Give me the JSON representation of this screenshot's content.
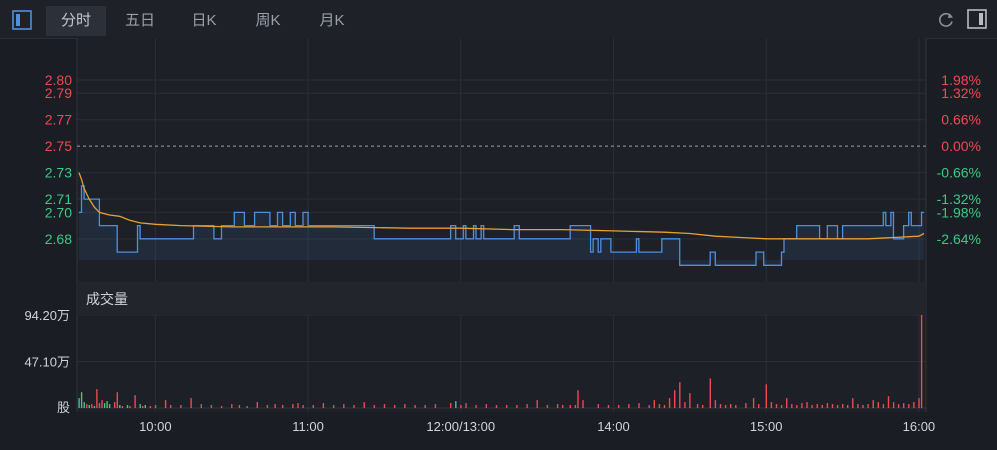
{
  "tabs": [
    {
      "label": "分时",
      "active": true
    },
    {
      "label": "五日",
      "active": false
    },
    {
      "label": "日K",
      "active": false
    },
    {
      "label": "周K",
      "active": false
    },
    {
      "label": "月K",
      "active": false
    }
  ],
  "icons": {
    "left": "panel-toggle-icon",
    "refresh": "refresh-icon",
    "right": "sidebar-icon"
  },
  "colors": {
    "background": "#1a1d23",
    "up": "#f0494f",
    "down": "#3dc985",
    "price_line": "#4d90e0",
    "avg_line": "#e8a030",
    "grid": "#2a2e36"
  },
  "chart_data": [
    {
      "type": "line",
      "name": "price",
      "prev_close": 2.75,
      "ylim": [
        2.664,
        2.8
      ],
      "y_ticks": [
        {
          "value": 2.8,
          "label": "2.80",
          "pct": "1.98%"
        },
        {
          "value": 2.79,
          "label": "2.79",
          "pct": "1.32%"
        },
        {
          "value": 2.77,
          "label": "2.77",
          "pct": "0.66%"
        },
        {
          "value": 2.75,
          "label": "2.75",
          "pct": "0.00%"
        },
        {
          "value": 2.73,
          "label": "2.73",
          "pct": "-0.66%"
        },
        {
          "value": 2.71,
          "label": "2.71",
          "pct": "-1.32%"
        },
        {
          "value": 2.7,
          "label": "2.70",
          "pct": "-1.98%"
        },
        {
          "value": 2.68,
          "label": "2.68",
          "pct": "-2.64%"
        }
      ],
      "time_ticks": [
        {
          "t": 30,
          "label": "10:00"
        },
        {
          "t": 90,
          "label": "11:00"
        },
        {
          "t": 150,
          "label": "12:00/13:00"
        },
        {
          "t": 210,
          "label": "14:00"
        },
        {
          "t": 270,
          "label": "15:00"
        },
        {
          "t": 330,
          "label": "16:00"
        }
      ],
      "price_points": [
        [
          0,
          2.7
        ],
        [
          1,
          2.72
        ],
        [
          2,
          2.71
        ],
        [
          6,
          2.71
        ],
        [
          8,
          2.69
        ],
        [
          14,
          2.69
        ],
        [
          15,
          2.67
        ],
        [
          22,
          2.67
        ],
        [
          23,
          2.69
        ],
        [
          24,
          2.68
        ],
        [
          44,
          2.68
        ],
        [
          45,
          2.69
        ],
        [
          52,
          2.69
        ],
        [
          53,
          2.68
        ],
        [
          55,
          2.68
        ],
        [
          56,
          2.69
        ],
        [
          60,
          2.69
        ],
        [
          61,
          2.7
        ],
        [
          64,
          2.7
        ],
        [
          65,
          2.69
        ],
        [
          68,
          2.69
        ],
        [
          69,
          2.7
        ],
        [
          74,
          2.7
        ],
        [
          75,
          2.69
        ],
        [
          77,
          2.69
        ],
        [
          78,
          2.7
        ],
        [
          80,
          2.69
        ],
        [
          82,
          2.69
        ],
        [
          83,
          2.7
        ],
        [
          85,
          2.69
        ],
        [
          87,
          2.69
        ],
        [
          88,
          2.7
        ],
        [
          90,
          2.69
        ],
        [
          115,
          2.69
        ],
        [
          116,
          2.68
        ],
        [
          145,
          2.68
        ],
        [
          146,
          2.69
        ],
        [
          148,
          2.68
        ],
        [
          151,
          2.69
        ],
        [
          152,
          2.68
        ],
        [
          155,
          2.69
        ],
        [
          156,
          2.68
        ],
        [
          158,
          2.69
        ],
        [
          159,
          2.68
        ],
        [
          170,
          2.68
        ],
        [
          171,
          2.69
        ],
        [
          173,
          2.68
        ],
        [
          192,
          2.68
        ],
        [
          193,
          2.69
        ],
        [
          200,
          2.69
        ],
        [
          201,
          2.67
        ],
        [
          202,
          2.68
        ],
        [
          203,
          2.68
        ],
        [
          204,
          2.67
        ],
        [
          205,
          2.68
        ],
        [
          208,
          2.68
        ],
        [
          209,
          2.67
        ],
        [
          218,
          2.67
        ],
        [
          219,
          2.68
        ],
        [
          220,
          2.67
        ],
        [
          228,
          2.67
        ],
        [
          229,
          2.68
        ],
        [
          235,
          2.68
        ],
        [
          236,
          2.66
        ],
        [
          247,
          2.66
        ],
        [
          248,
          2.67
        ],
        [
          249,
          2.67
        ],
        [
          250,
          2.66
        ],
        [
          265,
          2.66
        ],
        [
          266,
          2.67
        ],
        [
          268,
          2.67
        ],
        [
          269,
          2.66
        ],
        [
          275,
          2.66
        ],
        [
          276,
          2.67
        ],
        [
          277,
          2.68
        ],
        [
          281,
          2.68
        ],
        [
          282,
          2.69
        ],
        [
          290,
          2.69
        ],
        [
          291,
          2.68
        ],
        [
          293,
          2.68
        ],
        [
          294,
          2.69
        ],
        [
          297,
          2.69
        ],
        [
          298,
          2.68
        ],
        [
          300,
          2.69
        ],
        [
          315,
          2.69
        ],
        [
          316,
          2.7
        ],
        [
          317,
          2.69
        ],
        [
          318,
          2.69
        ],
        [
          319,
          2.7
        ],
        [
          320,
          2.68
        ],
        [
          323,
          2.68
        ],
        [
          324,
          2.69
        ],
        [
          326,
          2.7
        ],
        [
          327,
          2.69
        ],
        [
          330,
          2.69
        ],
        [
          331,
          2.7
        ],
        [
          332,
          2.7
        ]
      ],
      "avg_points": [
        [
          0,
          2.73
        ],
        [
          1,
          2.725
        ],
        [
          2,
          2.718
        ],
        [
          4,
          2.71
        ],
        [
          6,
          2.704
        ],
        [
          8,
          2.7
        ],
        [
          12,
          2.698
        ],
        [
          16,
          2.697
        ],
        [
          20,
          2.694
        ],
        [
          24,
          2.692
        ],
        [
          30,
          2.691
        ],
        [
          40,
          2.69
        ],
        [
          60,
          2.689
        ],
        [
          80,
          2.689
        ],
        [
          100,
          2.689
        ],
        [
          130,
          2.688
        ],
        [
          150,
          2.688
        ],
        [
          170,
          2.687
        ],
        [
          190,
          2.687
        ],
        [
          210,
          2.686
        ],
        [
          230,
          2.685
        ],
        [
          240,
          2.684
        ],
        [
          250,
          2.682
        ],
        [
          260,
          2.681
        ],
        [
          270,
          2.68
        ],
        [
          280,
          2.68
        ],
        [
          290,
          2.68
        ],
        [
          300,
          2.68
        ],
        [
          310,
          2.68
        ],
        [
          320,
          2.681
        ],
        [
          330,
          2.682
        ],
        [
          332,
          2.684
        ]
      ]
    },
    {
      "type": "bar",
      "title": "成交量",
      "ylim": [
        0,
        94.2
      ],
      "y_ticks": [
        {
          "value": 94.2,
          "label": "94.20万"
        },
        {
          "value": 47.1,
          "label": "47.10万"
        },
        {
          "value": 0,
          "label": "股"
        }
      ],
      "bars": [
        [
          0,
          10,
          "down"
        ],
        [
          1,
          16,
          "down"
        ],
        [
          2,
          6,
          "down"
        ],
        [
          3,
          4,
          "up"
        ],
        [
          4,
          3,
          "down"
        ],
        [
          5,
          4,
          "up"
        ],
        [
          6,
          2,
          "down"
        ],
        [
          7,
          19,
          "up"
        ],
        [
          8,
          5,
          "up"
        ],
        [
          9,
          8,
          "up"
        ],
        [
          10,
          5,
          "down"
        ],
        [
          11,
          7,
          "down"
        ],
        [
          12,
          4,
          "down"
        ],
        [
          14,
          6,
          "up"
        ],
        [
          15,
          16,
          "up"
        ],
        [
          16,
          3,
          "down"
        ],
        [
          17,
          2,
          "up"
        ],
        [
          19,
          3,
          "down"
        ],
        [
          20,
          2,
          "up"
        ],
        [
          22,
          13,
          "up"
        ],
        [
          24,
          4,
          "down"
        ],
        [
          25,
          2,
          "up"
        ],
        [
          26,
          3,
          "down"
        ],
        [
          28,
          2,
          "up"
        ],
        [
          30,
          3,
          "up"
        ],
        [
          34,
          8,
          "up"
        ],
        [
          36,
          3,
          "up"
        ],
        [
          40,
          3,
          "up"
        ],
        [
          44,
          10,
          "up"
        ],
        [
          48,
          4,
          "up"
        ],
        [
          52,
          3,
          "up"
        ],
        [
          56,
          2,
          "up"
        ],
        [
          60,
          4,
          "up"
        ],
        [
          63,
          3,
          "up"
        ],
        [
          66,
          2,
          "up"
        ],
        [
          70,
          6,
          "up"
        ],
        [
          74,
          3,
          "up"
        ],
        [
          77,
          4,
          "up"
        ],
        [
          80,
          3,
          "up"
        ],
        [
          84,
          4,
          "up"
        ],
        [
          86,
          5,
          "up"
        ],
        [
          88,
          3,
          "up"
        ],
        [
          92,
          3,
          "up"
        ],
        [
          96,
          5,
          "up"
        ],
        [
          100,
          3,
          "up"
        ],
        [
          104,
          4,
          "up"
        ],
        [
          108,
          3,
          "up"
        ],
        [
          112,
          6,
          "up"
        ],
        [
          116,
          3,
          "up"
        ],
        [
          120,
          4,
          "up"
        ],
        [
          124,
          3,
          "up"
        ],
        [
          128,
          4,
          "up"
        ],
        [
          132,
          3,
          "up"
        ],
        [
          136,
          3,
          "up"
        ],
        [
          140,
          4,
          "up"
        ],
        [
          146,
          5,
          "up"
        ],
        [
          148,
          7,
          "down"
        ],
        [
          150,
          3,
          "up"
        ],
        [
          152,
          5,
          "up"
        ],
        [
          156,
          3,
          "up"
        ],
        [
          160,
          4,
          "up"
        ],
        [
          164,
          3,
          "up"
        ],
        [
          168,
          3,
          "up"
        ],
        [
          172,
          3,
          "up"
        ],
        [
          176,
          4,
          "up"
        ],
        [
          180,
          8,
          "up"
        ],
        [
          184,
          3,
          "up"
        ],
        [
          188,
          4,
          "up"
        ],
        [
          190,
          3,
          "up"
        ],
        [
          193,
          3,
          "up"
        ],
        [
          195,
          3,
          "up"
        ],
        [
          196,
          18,
          "up"
        ],
        [
          198,
          8,
          "up"
        ],
        [
          204,
          4,
          "up"
        ],
        [
          208,
          3,
          "up"
        ],
        [
          212,
          3,
          "up"
        ],
        [
          216,
          4,
          "up"
        ],
        [
          220,
          5,
          "up"
        ],
        [
          224,
          3,
          "up"
        ],
        [
          226,
          8,
          "up"
        ],
        [
          228,
          4,
          "up"
        ],
        [
          230,
          3,
          "up"
        ],
        [
          232,
          10,
          "up"
        ],
        [
          234,
          18,
          "up"
        ],
        [
          236,
          26,
          "up"
        ],
        [
          238,
          6,
          "up"
        ],
        [
          240,
          15,
          "up"
        ],
        [
          243,
          4,
          "up"
        ],
        [
          245,
          3,
          "up"
        ],
        [
          248,
          30,
          "up"
        ],
        [
          250,
          8,
          "up"
        ],
        [
          252,
          4,
          "up"
        ],
        [
          254,
          3,
          "up"
        ],
        [
          256,
          4,
          "up"
        ],
        [
          258,
          3,
          "up"
        ],
        [
          262,
          5,
          "up"
        ],
        [
          265,
          10,
          "up"
        ],
        [
          267,
          4,
          "up"
        ],
        [
          270,
          24,
          "up"
        ],
        [
          272,
          6,
          "up"
        ],
        [
          274,
          4,
          "up"
        ],
        [
          276,
          3,
          "up"
        ],
        [
          278,
          10,
          "up"
        ],
        [
          280,
          4,
          "up"
        ],
        [
          282,
          3,
          "up"
        ],
        [
          284,
          5,
          "up"
        ],
        [
          286,
          6,
          "up"
        ],
        [
          288,
          3,
          "up"
        ],
        [
          290,
          4,
          "up"
        ],
        [
          292,
          3,
          "up"
        ],
        [
          294,
          5,
          "up"
        ],
        [
          296,
          4,
          "up"
        ],
        [
          298,
          3,
          "up"
        ],
        [
          300,
          4,
          "up"
        ],
        [
          302,
          3,
          "up"
        ],
        [
          304,
          10,
          "up"
        ],
        [
          306,
          4,
          "up"
        ],
        [
          308,
          3,
          "up"
        ],
        [
          310,
          4,
          "up"
        ],
        [
          312,
          8,
          "up"
        ],
        [
          314,
          6,
          "up"
        ],
        [
          316,
          4,
          "up"
        ],
        [
          318,
          12,
          "up"
        ],
        [
          320,
          6,
          "up"
        ],
        [
          322,
          4,
          "up"
        ],
        [
          324,
          5,
          "up"
        ],
        [
          326,
          4,
          "up"
        ],
        [
          328,
          6,
          "up"
        ],
        [
          330,
          10,
          "up"
        ],
        [
          331,
          94.2,
          "up"
        ]
      ]
    }
  ]
}
